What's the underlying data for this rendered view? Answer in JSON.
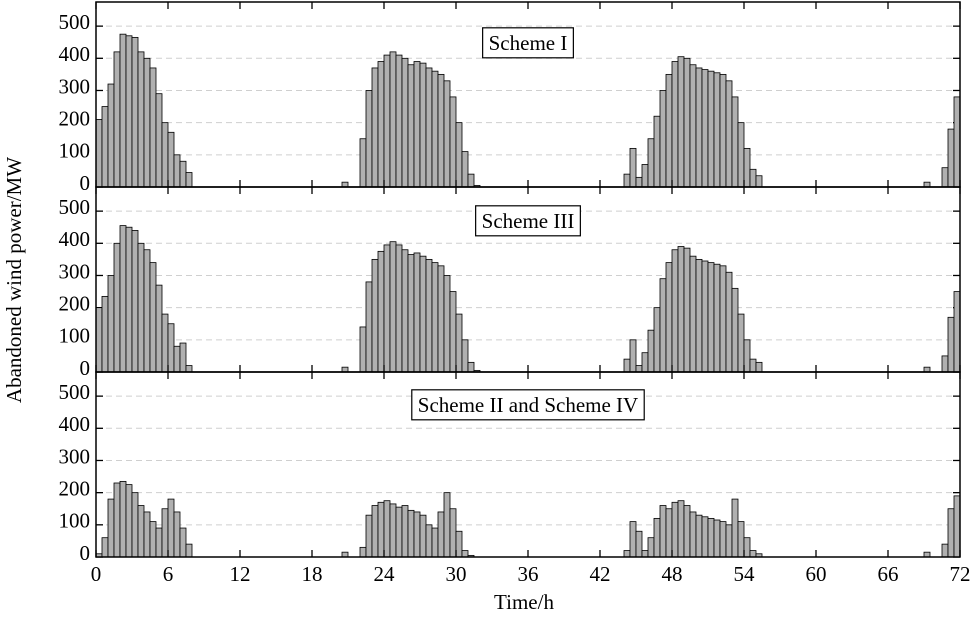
{
  "chart_data": {
    "type": "bar",
    "xlabel": "Time/h",
    "ylabel": "Abandoned wind power/MW",
    "xlim": [
      0,
      72
    ],
    "xticks": [
      0,
      6,
      12,
      18,
      24,
      30,
      36,
      42,
      48,
      54,
      60,
      66,
      72
    ],
    "ylim": [
      0,
      575
    ],
    "yticks": [
      0,
      100,
      200,
      300,
      400,
      500
    ],
    "grid": true,
    "x": [
      0.25,
      0.75,
      1.25,
      1.75,
      2.25,
      2.75,
      3.25,
      3.75,
      4.25,
      4.75,
      5.25,
      5.75,
      6.25,
      6.75,
      7.25,
      7.75,
      8.25,
      8.75,
      9.25,
      9.75,
      10.25,
      10.75,
      11.25,
      11.75,
      12.25,
      12.75,
      13.25,
      13.75,
      14.25,
      14.75,
      15.25,
      15.75,
      16.25,
      16.75,
      17.25,
      17.75,
      18.25,
      18.75,
      19.25,
      19.75,
      20.25,
      20.75,
      21.25,
      21.75,
      22.25,
      22.75,
      23.25,
      23.75,
      24.25,
      24.75,
      25.25,
      25.75,
      26.25,
      26.75,
      27.25,
      27.75,
      28.25,
      28.75,
      29.25,
      29.75,
      30.25,
      30.75,
      31.25,
      31.75,
      32.25,
      32.75,
      33.25,
      33.75,
      34.25,
      34.75,
      35.25,
      35.75,
      36.25,
      36.75,
      37.25,
      37.75,
      38.25,
      38.75,
      39.25,
      39.75,
      40.25,
      40.75,
      41.25,
      41.75,
      42.25,
      42.75,
      43.25,
      43.75,
      44.25,
      44.75,
      45.25,
      45.75,
      46.25,
      46.75,
      47.25,
      47.75,
      48.25,
      48.75,
      49.25,
      49.75,
      50.25,
      50.75,
      51.25,
      51.75,
      52.25,
      52.75,
      53.25,
      53.75,
      54.25,
      54.75,
      55.25,
      55.75,
      56.25,
      56.75,
      57.25,
      57.75,
      58.25,
      58.75,
      59.25,
      59.75,
      60.25,
      60.75,
      61.25,
      61.75,
      62.25,
      62.75,
      63.25,
      63.75,
      64.25,
      64.75,
      65.25,
      65.75,
      66.25,
      66.75,
      67.25,
      67.75,
      68.25,
      68.75,
      69.25,
      69.75,
      70.25,
      70.75,
      71.25,
      71.75
    ],
    "series": [
      {
        "name": "Scheme I",
        "color": "#b0b0b0",
        "values": [
          210,
          250,
          320,
          420,
          475,
          470,
          465,
          420,
          400,
          370,
          290,
          200,
          170,
          100,
          80,
          45,
          0,
          0,
          0,
          0,
          0,
          0,
          0,
          0,
          0,
          0,
          0,
          0,
          0,
          0,
          0,
          0,
          0,
          0,
          0,
          0,
          0,
          0,
          0,
          0,
          0,
          15,
          0,
          0,
          150,
          300,
          370,
          390,
          410,
          420,
          410,
          400,
          380,
          390,
          385,
          370,
          360,
          350,
          330,
          280,
          200,
          110,
          40,
          5,
          0,
          0,
          0,
          0,
          0,
          0,
          0,
          0,
          0,
          0,
          0,
          0,
          0,
          0,
          0,
          0,
          0,
          0,
          0,
          0,
          0,
          0,
          0,
          0,
          40,
          120,
          30,
          70,
          150,
          220,
          300,
          350,
          390,
          405,
          400,
          380,
          370,
          365,
          360,
          355,
          350,
          330,
          280,
          200,
          120,
          55,
          35,
          0,
          0,
          0,
          0,
          0,
          0,
          0,
          0,
          0,
          0,
          0,
          0,
          0,
          0,
          0,
          0,
          0,
          0,
          0,
          0,
          0,
          0,
          0,
          0,
          0,
          0,
          0,
          15,
          0,
          0,
          60,
          180,
          280
        ]
      },
      {
        "name": "Scheme III",
        "color": "#b0b0b0",
        "values": [
          200,
          235,
          300,
          400,
          455,
          450,
          440,
          400,
          380,
          340,
          270,
          180,
          150,
          80,
          90,
          20,
          0,
          0,
          0,
          0,
          0,
          0,
          0,
          0,
          0,
          0,
          0,
          0,
          0,
          0,
          0,
          0,
          0,
          0,
          0,
          0,
          0,
          0,
          0,
          0,
          0,
          15,
          0,
          0,
          140,
          280,
          350,
          375,
          395,
          405,
          395,
          380,
          365,
          370,
          360,
          350,
          340,
          330,
          300,
          250,
          180,
          100,
          30,
          5,
          0,
          0,
          0,
          0,
          0,
          0,
          0,
          0,
          0,
          0,
          0,
          0,
          0,
          0,
          0,
          0,
          0,
          0,
          0,
          0,
          0,
          0,
          0,
          0,
          40,
          100,
          20,
          60,
          130,
          200,
          290,
          340,
          380,
          390,
          385,
          360,
          350,
          345,
          340,
          335,
          330,
          310,
          260,
          180,
          100,
          40,
          30,
          0,
          0,
          0,
          0,
          0,
          0,
          0,
          0,
          0,
          0,
          0,
          0,
          0,
          0,
          0,
          0,
          0,
          0,
          0,
          0,
          0,
          0,
          0,
          0,
          0,
          0,
          0,
          15,
          0,
          0,
          50,
          170,
          250
        ]
      },
      {
        "name": "Scheme II and Scheme IV",
        "color": "#b0b0b0",
        "values": [
          10,
          60,
          180,
          230,
          235,
          225,
          200,
          160,
          140,
          110,
          90,
          150,
          180,
          140,
          90,
          40,
          0,
          0,
          0,
          0,
          0,
          0,
          0,
          0,
          0,
          0,
          0,
          0,
          0,
          0,
          0,
          0,
          0,
          0,
          0,
          0,
          0,
          0,
          0,
          0,
          0,
          15,
          0,
          0,
          30,
          130,
          160,
          170,
          175,
          165,
          155,
          160,
          145,
          140,
          130,
          100,
          90,
          140,
          200,
          150,
          80,
          20,
          5,
          0,
          0,
          0,
          0,
          0,
          0,
          0,
          0,
          0,
          0,
          0,
          0,
          0,
          0,
          0,
          0,
          0,
          0,
          0,
          0,
          0,
          0,
          0,
          0,
          0,
          20,
          110,
          80,
          20,
          60,
          120,
          160,
          150,
          170,
          175,
          160,
          140,
          130,
          125,
          120,
          115,
          110,
          100,
          180,
          110,
          60,
          20,
          10,
          0,
          0,
          0,
          0,
          0,
          0,
          0,
          0,
          0,
          0,
          0,
          0,
          0,
          0,
          0,
          0,
          0,
          0,
          0,
          0,
          0,
          0,
          0,
          0,
          0,
          0,
          0,
          15,
          0,
          0,
          40,
          150,
          190
        ]
      }
    ]
  }
}
